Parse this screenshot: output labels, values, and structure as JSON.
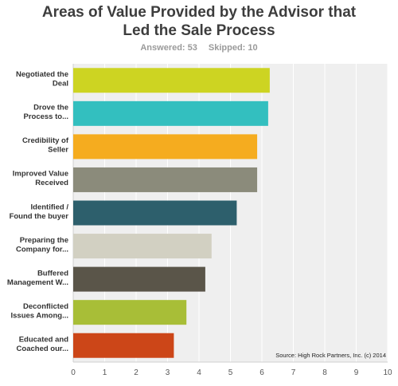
{
  "header": {
    "title_line1": "Areas of Value Provided by the Advisor that",
    "title_line2": "Led the Sale Process",
    "answered": "Answered: 53",
    "skipped": "Skipped: 10"
  },
  "source_note": "Source: High Rock Partners, Inc. (c) 2014",
  "chart_data": {
    "type": "bar",
    "orientation": "horizontal",
    "title": "Areas of Value Provided by the Advisor that Led the Sale Process",
    "categories": [
      [
        "Negotiated the",
        "Deal"
      ],
      [
        "Drove the",
        "Process to..."
      ],
      [
        "Credibility of",
        "Seller"
      ],
      [
        "Improved Value",
        "Received"
      ],
      [
        "Identified /",
        "Found the buyer"
      ],
      [
        "Preparing the",
        "Company for..."
      ],
      [
        "Buffered",
        "Management W..."
      ],
      [
        "Deconflicted",
        "Issues Among..."
      ],
      [
        "Educated and",
        "Coached our..."
      ]
    ],
    "values": [
      6.25,
      6.2,
      5.85,
      5.85,
      5.2,
      4.4,
      4.2,
      3.6,
      3.2
    ],
    "colors": [
      "#cdd422",
      "#33bfbf",
      "#f5ac1f",
      "#8b8b7b",
      "#2d5f6c",
      "#d2d0c2",
      "#5a5549",
      "#a8be37",
      "#cc4618"
    ],
    "xlim": [
      0,
      10
    ],
    "xticks": [
      0,
      1,
      2,
      3,
      4,
      5,
      6,
      7,
      8,
      9,
      10
    ],
    "grid": true
  }
}
